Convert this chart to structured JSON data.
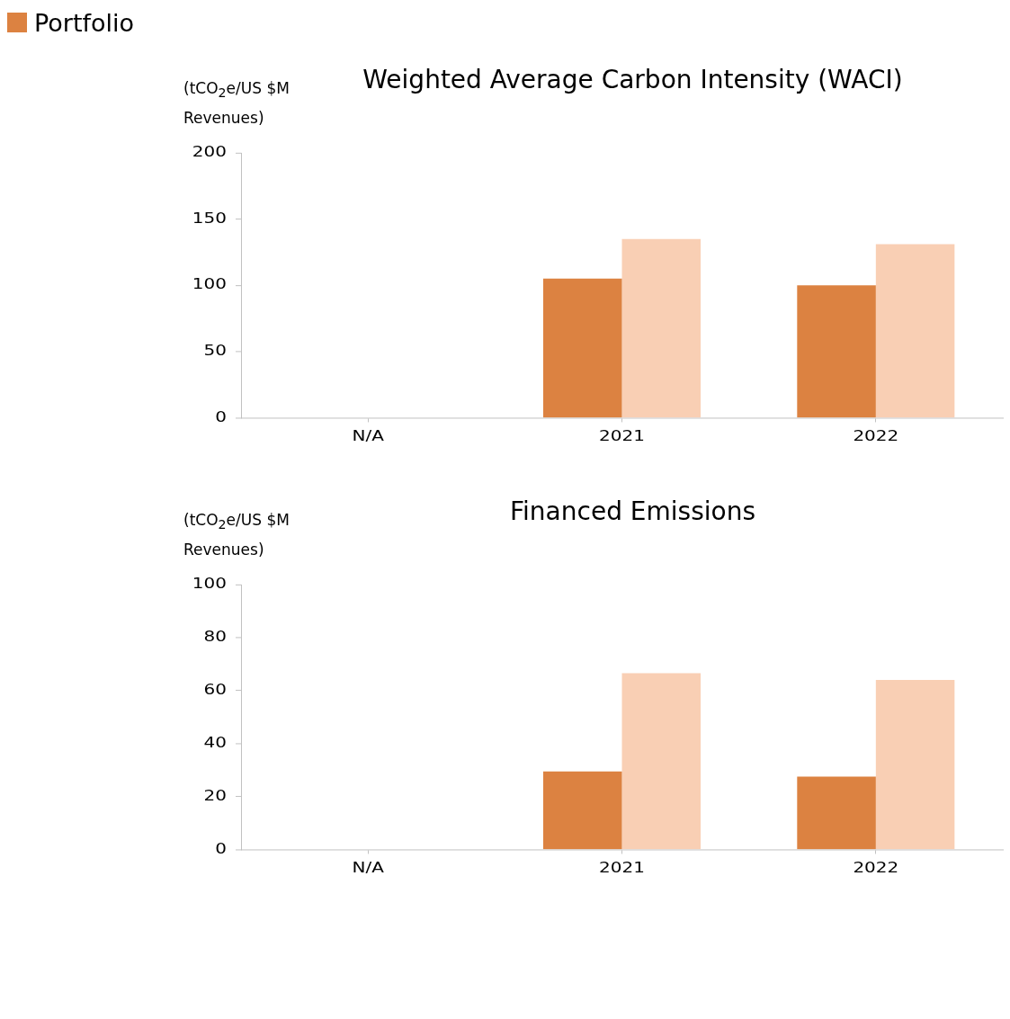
{
  "chart_data": [
    {
      "type": "bar",
      "title": "Weighted Average Carbon Intensity (WACI)",
      "ylabel": "(tCO$_{2}$e/US $M Revenues)",
      "categories": [
        "N/A",
        "2021",
        "2022"
      ],
      "series": [
        {
          "name": "Portfolio",
          "color": "#dc8241",
          "values": [
            null,
            105,
            100
          ]
        },
        {
          "color": "#f9cfb4",
          "values": [
            null,
            135,
            131
          ]
        }
      ],
      "ylim": [
        0,
        200
      ],
      "yticks": [
        0,
        50,
        100,
        150,
        200
      ],
      "grid": false,
      "legend": "top left"
    },
    {
      "type": "bar",
      "title": "Financed Emissions",
      "ylabel": "(tCO$_{2}$e/US $M Revenues)",
      "categories": [
        "N/A",
        "2021",
        "2022"
      ],
      "series": [
        {
          "color": "#dc8241",
          "values": [
            null,
            29.5,
            27.5
          ]
        },
        {
          "color": "#f9cfb4",
          "values": [
            null,
            66.5,
            64
          ]
        }
      ],
      "ylim": [
        0,
        100
      ],
      "yticks": [
        0,
        20,
        40,
        60,
        80,
        100
      ],
      "grid": false
    }
  ]
}
